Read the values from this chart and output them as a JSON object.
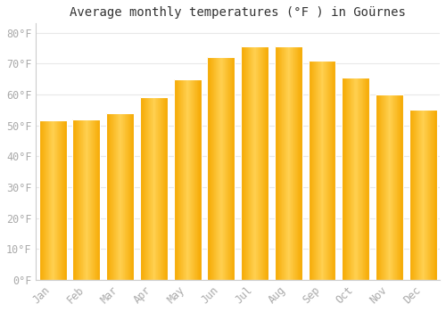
{
  "title": "Average monthly temperatures (°F ) in Goürnes",
  "months": [
    "Jan",
    "Feb",
    "Mar",
    "Apr",
    "May",
    "Jun",
    "Jul",
    "Aug",
    "Sep",
    "Oct",
    "Nov",
    "Dec"
  ],
  "values": [
    51.5,
    51.8,
    54.0,
    59.0,
    65.0,
    72.0,
    75.5,
    75.5,
    71.0,
    65.5,
    60.0,
    55.0
  ],
  "bar_color_center": "#FFD050",
  "bar_color_edge": "#F5A800",
  "background_color": "#ffffff",
  "grid_color": "#e8e8e8",
  "ytick_labels": [
    "0°F",
    "10°F",
    "20°F",
    "30°F",
    "40°F",
    "50°F",
    "60°F",
    "70°F",
    "80°F"
  ],
  "ytick_values": [
    0,
    10,
    20,
    30,
    40,
    50,
    60,
    70,
    80
  ],
  "ylim": [
    0,
    83
  ],
  "title_fontsize": 10,
  "tick_fontsize": 8.5,
  "tick_color": "#aaaaaa",
  "axis_color": "#cccccc",
  "bar_width": 0.82
}
